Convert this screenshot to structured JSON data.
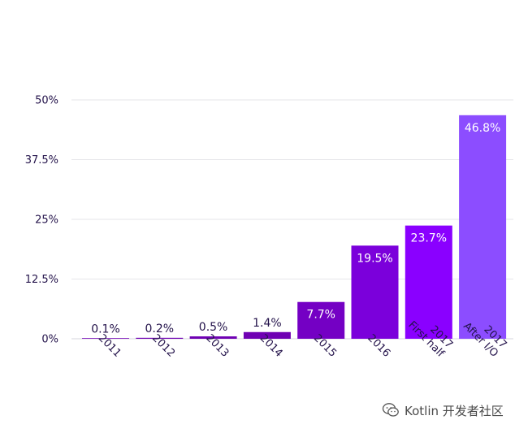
{
  "chart_data": {
    "type": "bar",
    "categories": [
      [
        "2011"
      ],
      [
        "2012"
      ],
      [
        "2013"
      ],
      [
        "2014"
      ],
      [
        "2015"
      ],
      [
        "2016"
      ],
      [
        "2017",
        "First half"
      ],
      [
        "2017",
        "After I/O"
      ]
    ],
    "values": [
      0.1,
      0.2,
      0.5,
      1.4,
      7.7,
      19.5,
      23.7,
      46.8
    ],
    "data_labels": [
      "0.1%",
      "0.2%",
      "0.5%",
      "1.4%",
      "7.7%",
      "19.5%",
      "23.7%",
      "46.8%"
    ],
    "yticks": [
      0,
      12.5,
      25,
      37.5,
      50
    ],
    "ytick_labels": [
      "0%",
      "12.5%",
      "25%",
      "37.5%",
      "50%"
    ],
    "ylim": [
      0,
      50
    ],
    "grid": true,
    "legend": "none",
    "colors": [
      "#6f00b3",
      "#6f00b3",
      "#6f00b3",
      "#6f00b3",
      "#7400c4",
      "#7b00db",
      "#8a00ff",
      "#8c4dff"
    ],
    "title": "",
    "xlabel": "",
    "ylabel": ""
  },
  "watermark": {
    "icon": "wechat-icon",
    "text": "Kotlin 开发者社区"
  }
}
